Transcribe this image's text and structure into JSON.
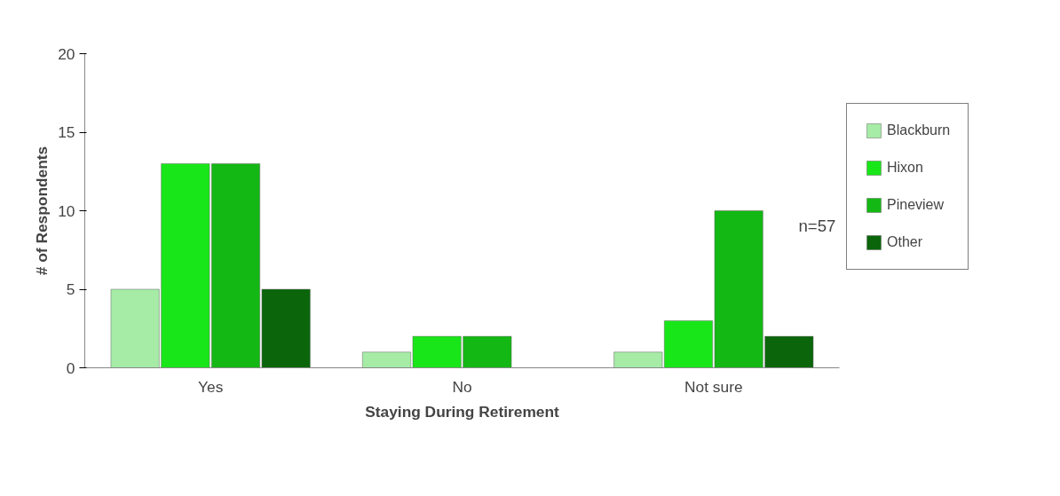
{
  "chart_data": {
    "type": "bar",
    "xlabel": "Staying During Retirement",
    "ylabel": "# of Respondents",
    "categories": [
      "Yes",
      "No",
      "Not sure"
    ],
    "series": [
      {
        "name": "Blackburn",
        "color": "#a6eba6",
        "values": [
          5,
          1,
          1
        ]
      },
      {
        "name": "Hixon",
        "color": "#19e619",
        "values": [
          13,
          2,
          3
        ]
      },
      {
        "name": "Pineview",
        "color": "#14b814",
        "values": [
          13,
          2,
          10
        ]
      },
      {
        "name": "Other",
        "color": "#0b660b",
        "values": [
          5,
          null,
          2
        ]
      }
    ],
    "ylim": [
      0,
      20
    ],
    "yticks": [
      0,
      5,
      10,
      15,
      20
    ],
    "grid": false,
    "legend": "top right",
    "annotations": [
      "n=57"
    ]
  }
}
